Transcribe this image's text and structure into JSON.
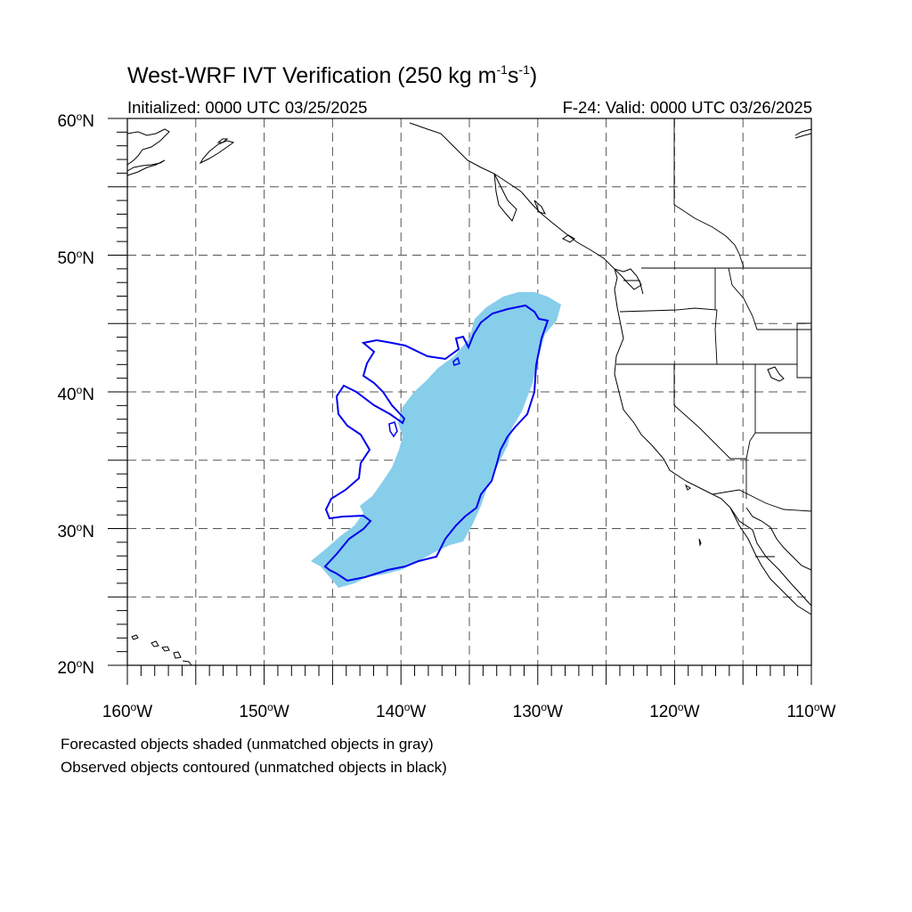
{
  "title": {
    "main": "West-WRF IVT Verification (250 kg m",
    "exp1": "-1",
    "mid": "s",
    "exp2": "-1",
    "end": ")"
  },
  "subtitle": {
    "left": "Initialized: 0000 UTC 03/25/2025",
    "right": "F-24: Valid: 0000 UTC 03/26/2025"
  },
  "axes": {
    "lat_labels": [
      {
        "value": 60,
        "num": "60",
        "hemi": "N"
      },
      {
        "value": 50,
        "num": "50",
        "hemi": "N"
      },
      {
        "value": 40,
        "num": "40",
        "hemi": "N"
      },
      {
        "value": 30,
        "num": "30",
        "hemi": "N"
      },
      {
        "value": 20,
        "num": "20",
        "hemi": "N"
      }
    ],
    "lon_labels": [
      {
        "value": -160,
        "num": "160",
        "hemi": "W"
      },
      {
        "value": -150,
        "num": "150",
        "hemi": "W"
      },
      {
        "value": -140,
        "num": "140",
        "hemi": "W"
      },
      {
        "value": -130,
        "num": "130",
        "hemi": "W"
      },
      {
        "value": -120,
        "num": "120",
        "hemi": "W"
      },
      {
        "value": -110,
        "num": "110",
        "hemi": "W"
      }
    ],
    "degree_symbol": "o",
    "lat_range": [
      20,
      60
    ],
    "lon_range": [
      -160,
      -110
    ],
    "grid_interval_deg": 5,
    "grid_style": "dashed gray"
  },
  "captions": {
    "line1": "Forecasted objects shaded (unmatched objects in gray)",
    "line2": "Observed objects contoured (unmatched objects in black)"
  },
  "colors": {
    "forecast_fill": "#87ceeb",
    "observed_contour": "#0000ee",
    "coastline": "#000000",
    "grid": "#555555"
  }
}
